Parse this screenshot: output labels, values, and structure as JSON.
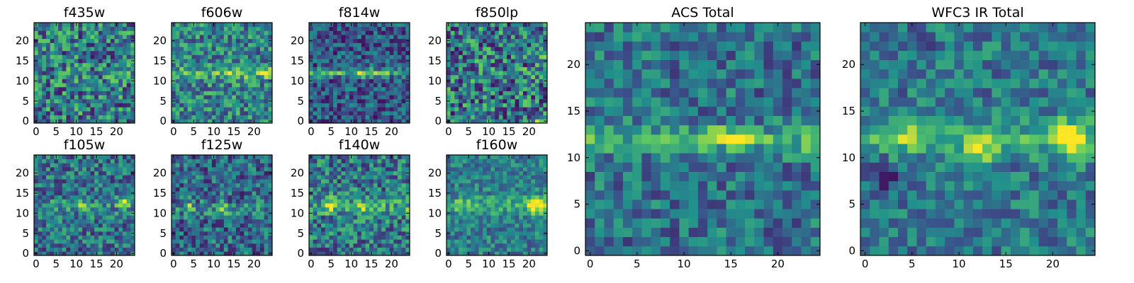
{
  "figure": {
    "colormap": "viridis",
    "colormap_stops": [
      "#440154",
      "#3b528b",
      "#21918c",
      "#5ec962",
      "#fde725"
    ]
  },
  "chart_data": [
    {
      "type": "heatmap",
      "title": "f435w",
      "grid_size": 25,
      "xlim": [
        -0.5,
        24.5
      ],
      "ylim": [
        -0.5,
        24.5
      ],
      "xticks": [
        0,
        5,
        10,
        15,
        20
      ],
      "yticks": [
        0,
        5,
        10,
        15,
        20
      ],
      "seed": 11,
      "baseline": 0.42,
      "noise": 0.34,
      "band": {
        "row": 12,
        "width": 2.0,
        "strength": 0.05
      },
      "hotspots": []
    },
    {
      "type": "heatmap",
      "title": "f606w",
      "grid_size": 25,
      "xlim": [
        -0.5,
        24.5
      ],
      "ylim": [
        -0.5,
        24.5
      ],
      "xticks": [
        0,
        5,
        10,
        15,
        20
      ],
      "yticks": [
        0,
        5,
        10,
        15,
        20
      ],
      "seed": 23,
      "baseline": 0.45,
      "noise": 0.28,
      "band": {
        "row": 12,
        "width": 1.6,
        "strength": 0.2
      },
      "hotspots": [
        {
          "x": 15,
          "y": 12,
          "amp": 0.2,
          "r": 1.2
        },
        {
          "x": 23,
          "y": 12,
          "amp": 0.25,
          "r": 1.0
        }
      ]
    },
    {
      "type": "heatmap",
      "title": "f814w",
      "grid_size": 25,
      "xlim": [
        -0.5,
        24.5
      ],
      "ylim": [
        -0.5,
        24.5
      ],
      "xticks": [
        0,
        5,
        10,
        15,
        20
      ],
      "yticks": [
        0,
        5,
        10,
        15,
        20
      ],
      "seed": 37,
      "baseline": 0.28,
      "noise": 0.24,
      "band": {
        "row": 12,
        "width": 0.9,
        "strength": 0.35
      },
      "hotspots": [
        {
          "x": 13,
          "y": 12,
          "amp": 0.3,
          "r": 0.8
        },
        {
          "x": 16,
          "y": 12,
          "amp": 0.25,
          "r": 0.8
        }
      ]
    },
    {
      "type": "heatmap",
      "title": "f850lp",
      "grid_size": 25,
      "xlim": [
        -0.5,
        24.5
      ],
      "ylim": [
        -0.5,
        24.5
      ],
      "xticks": [
        0,
        5,
        10,
        15,
        20
      ],
      "yticks": [
        0,
        5,
        10,
        15,
        20
      ],
      "seed": 51,
      "baseline": 0.4,
      "noise": 0.36,
      "band": {
        "row": 12,
        "width": 2.0,
        "strength": 0.05
      },
      "hotspots": [
        {
          "x": 24,
          "y": 16,
          "amp": 0.4,
          "r": 0.5
        },
        {
          "x": 22,
          "y": 0,
          "amp": 0.45,
          "r": 0.5
        }
      ]
    },
    {
      "type": "heatmap",
      "title": "f105w",
      "grid_size": 25,
      "xlim": [
        -0.5,
        24.5
      ],
      "ylim": [
        -0.5,
        24.5
      ],
      "xticks": [
        0,
        5,
        10,
        15,
        20
      ],
      "yticks": [
        0,
        5,
        10,
        15,
        20
      ],
      "seed": 67,
      "baseline": 0.38,
      "noise": 0.26,
      "band": {
        "row": 12,
        "width": 1.8,
        "strength": 0.12
      },
      "hotspots": [
        {
          "x": 22,
          "y": 13,
          "amp": 0.4,
          "r": 1.0
        },
        {
          "x": 11,
          "y": 12,
          "amp": 0.2,
          "r": 1.2
        }
      ]
    },
    {
      "type": "heatmap",
      "title": "f125w",
      "grid_size": 25,
      "xlim": [
        -0.5,
        24.5
      ],
      "ylim": [
        -0.5,
        24.5
      ],
      "xticks": [
        0,
        5,
        10,
        15,
        20
      ],
      "yticks": [
        0,
        5,
        10,
        15,
        20
      ],
      "seed": 79,
      "baseline": 0.34,
      "noise": 0.27,
      "band": {
        "row": 11,
        "width": 1.8,
        "strength": 0.12
      },
      "hotspots": [
        {
          "x": 12,
          "y": 11,
          "amp": 0.4,
          "r": 1.0
        },
        {
          "x": 4,
          "y": 12,
          "amp": 0.3,
          "r": 1.0
        }
      ]
    },
    {
      "type": "heatmap",
      "title": "f140w",
      "grid_size": 25,
      "xlim": [
        -0.5,
        24.5
      ],
      "ylim": [
        -0.5,
        24.5
      ],
      "xticks": [
        0,
        5,
        10,
        15,
        20
      ],
      "yticks": [
        0,
        5,
        10,
        15,
        20
      ],
      "seed": 97,
      "baseline": 0.4,
      "noise": 0.28,
      "band": {
        "row": 12,
        "width": 2.0,
        "strength": 0.15
      },
      "hotspots": [
        {
          "x": 5,
          "y": 12,
          "amp": 0.35,
          "r": 1.3
        },
        {
          "x": 13,
          "y": 11,
          "amp": 0.3,
          "r": 1.3
        },
        {
          "x": 24,
          "y": 10,
          "amp": 0.35,
          "r": 0.6
        }
      ]
    },
    {
      "type": "heatmap",
      "title": "f160w",
      "grid_size": 25,
      "xlim": [
        -0.5,
        24.5
      ],
      "ylim": [
        -0.5,
        24.5
      ],
      "xticks": [
        0,
        5,
        10,
        15,
        20
      ],
      "yticks": [
        0,
        5,
        10,
        15,
        20
      ],
      "seed": 113,
      "baseline": 0.42,
      "noise": 0.2,
      "band": {
        "row": 12,
        "width": 2.2,
        "strength": 0.18
      },
      "hotspots": [
        {
          "x": 22,
          "y": 12,
          "amp": 0.45,
          "r": 1.6
        },
        {
          "x": 4,
          "y": 12,
          "amp": 0.15,
          "r": 1.5
        }
      ]
    },
    {
      "type": "heatmap",
      "title": "ACS Total",
      "grid_size": 25,
      "xlim": [
        -0.5,
        24.5
      ],
      "ylim": [
        -0.5,
        24.5
      ],
      "xticks": [
        0,
        5,
        10,
        15,
        20
      ],
      "yticks": [
        0,
        5,
        10,
        15,
        20
      ],
      "seed": 131,
      "baseline": 0.38,
      "noise": 0.22,
      "band": {
        "row": 12,
        "width": 1.4,
        "strength": 0.25
      },
      "hotspots": [
        {
          "x": 13,
          "y": 12,
          "amp": 0.4,
          "r": 0.6
        },
        {
          "x": 15,
          "y": 12,
          "amp": 0.5,
          "r": 0.7
        },
        {
          "x": 16,
          "y": 12,
          "amp": 0.45,
          "r": 0.6
        },
        {
          "x": 24,
          "y": 11,
          "amp": 0.3,
          "r": 0.6
        }
      ]
    },
    {
      "type": "heatmap",
      "title": "WFC3 IR Total",
      "grid_size": 25,
      "xlim": [
        -0.5,
        24.5
      ],
      "ylim": [
        -0.5,
        24.5
      ],
      "xticks": [
        0,
        5,
        10,
        15,
        20
      ],
      "yticks": [
        0,
        5,
        10,
        15,
        20
      ],
      "seed": 149,
      "baseline": 0.4,
      "noise": 0.2,
      "band": {
        "row": 12,
        "width": 1.8,
        "strength": 0.2
      },
      "hotspots": [
        {
          "x": 12,
          "y": 11,
          "amp": 0.55,
          "r": 1.1
        },
        {
          "x": 22,
          "y": 12,
          "amp": 0.55,
          "r": 1.4
        },
        {
          "x": 5,
          "y": 12,
          "amp": 0.3,
          "r": 1.0
        }
      ],
      "coldspots": [
        {
          "x": 2,
          "y": 8,
          "amp": 0.3,
          "r": 1.0
        },
        {
          "x": 6,
          "y": 22,
          "amp": 0.3,
          "r": 0.8
        }
      ]
    }
  ]
}
